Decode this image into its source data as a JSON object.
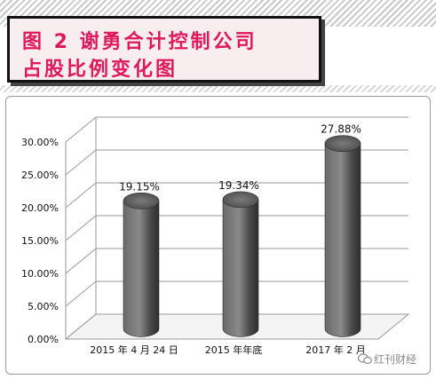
{
  "chart_data": {
    "type": "bar",
    "title": "图 2    谢勇合计控制公司占股比例变化图",
    "title_lines": [
      "图 2    谢勇合计控制公司",
      "占股比例变化图"
    ],
    "categories": [
      "2015 年 4 月 24 日",
      "2015 年年底",
      "2017 年 2 月"
    ],
    "series": [
      {
        "values": [
          19.15,
          19.34,
          27.88
        ],
        "labels": [
          "19.15%",
          "19.34%",
          "27.88%"
        ]
      }
    ],
    "yticks": [
      "0.00%",
      "5.00%",
      "10.00%",
      "15.00%",
      "20.00%",
      "25.00%",
      "30.00%"
    ],
    "ylim": [
      0,
      30
    ],
    "grid": true,
    "legend": false,
    "colors": {
      "bar": "#5a5a5a",
      "title": "#e0185c",
      "grid": "#9a9a9a"
    }
  },
  "watermark": {
    "icon": "wechat-icon",
    "text": "红刊财经"
  }
}
